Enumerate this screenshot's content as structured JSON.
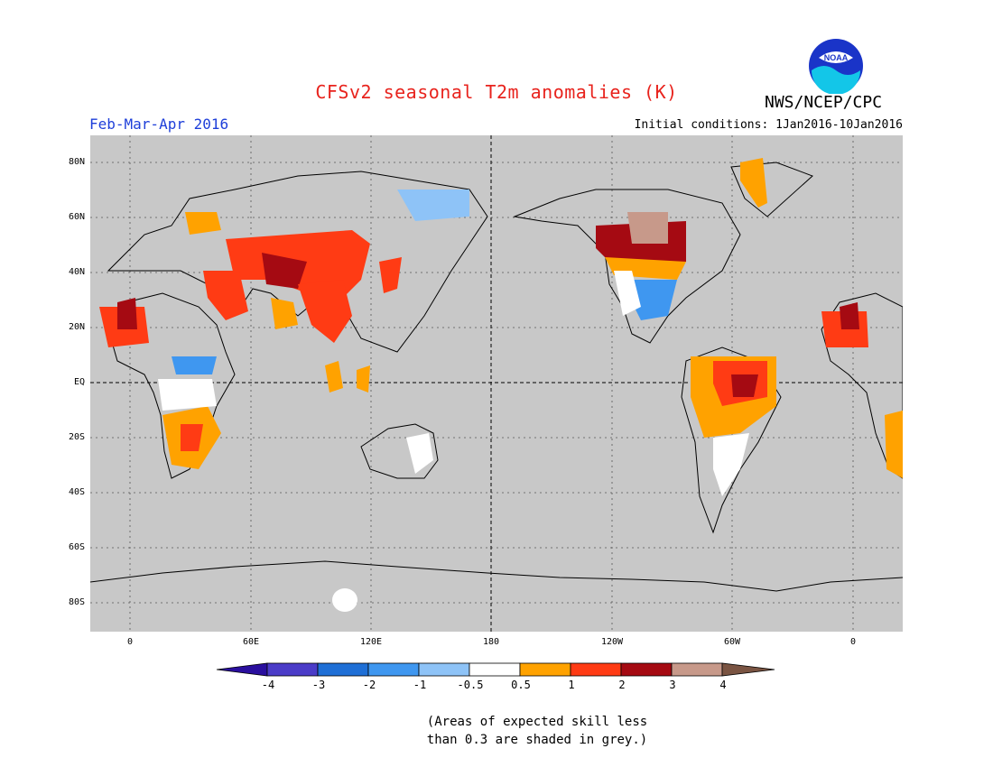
{
  "title": "CFSv2 seasonal T2m anomalies (K)",
  "organization": "NWS/NCEP/CPC",
  "logo_text": "NOAA",
  "period": "Feb-Mar-Apr 2016",
  "initial_conditions": "Initial conditions: 1Jan2016-10Jan2016",
  "lat_labels": [
    "80N",
    "60N",
    "40N",
    "20N",
    "EQ",
    "20S",
    "40S",
    "60S",
    "80S"
  ],
  "lon_labels": [
    "0",
    "60E",
    "120E",
    "180",
    "120W",
    "60W",
    "0"
  ],
  "colorbar": {
    "labels": [
      "-4",
      "-3",
      "-2",
      "-1",
      "-0.5",
      "0.5",
      "1",
      "2",
      "3",
      "4"
    ],
    "colors": [
      "#2a0f9e",
      "#4b3cc8",
      "#1f6fd6",
      "#3f97f0",
      "#8ec3f7",
      "#ffffff",
      "#ffa200",
      "#ff3b14",
      "#a50a12",
      "#c7998a",
      "#7a5442"
    ]
  },
  "note_line1": "(Areas of expected skill less",
  "note_line2": "than 0.3 are shaded in grey.)",
  "colors": {
    "no_skill_grey": "#c8c8c8",
    "title_red": "#e8231d",
    "period_blue": "#1e3fd9"
  }
}
